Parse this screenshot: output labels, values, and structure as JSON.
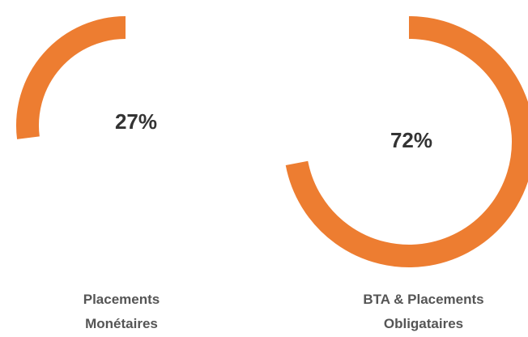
{
  "chart_data": [
    {
      "type": "donut",
      "values": [
        27
      ],
      "value_labels": [
        "27%"
      ],
      "label": "Placements Monétaires",
      "color": "#ed7d31"
    },
    {
      "type": "donut",
      "values": [
        72
      ],
      "value_labels": [
        "72%"
      ],
      "label": "BTA & Placements Obligataires",
      "color": "#ed7d31"
    }
  ]
}
